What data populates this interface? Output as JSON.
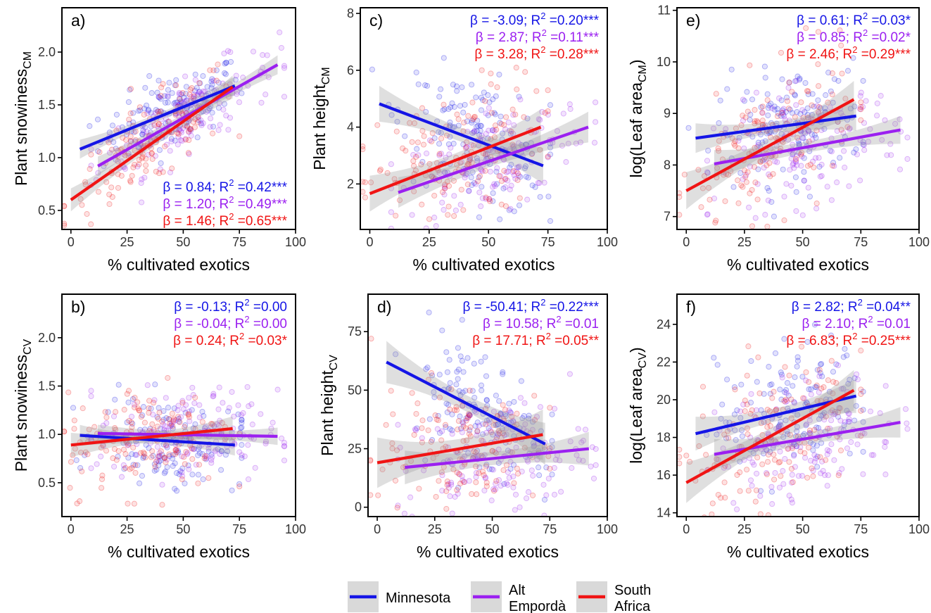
{
  "figure": {
    "legend": {
      "entries": [
        {
          "lines": [
            "Minnesota"
          ],
          "color": "#1515e6"
        },
        {
          "lines": [
            "Alt",
            "Empordà"
          ],
          "color": "#9b20f0"
        },
        {
          "lines": [
            "South",
            "Africa"
          ],
          "color": "#f01414"
        }
      ]
    }
  },
  "chart_data": [
    {
      "id": "a",
      "type": "scatter",
      "panel_label": "a)",
      "xlabel": "% cultivated exotics",
      "ylabel": {
        "main": "Plant snowiness",
        "sub": "CM"
      },
      "xlim": [
        -4,
        100
      ],
      "ylim": [
        0.32,
        2.42
      ],
      "xticks": [
        0,
        25,
        50,
        75,
        100
      ],
      "yticks": [
        0.5,
        1.0,
        1.5,
        2.0
      ],
      "ytick_labels": [
        "0.5",
        "1.0",
        "1.5",
        "2.0"
      ],
      "annot_pos": "bottom-right",
      "annotations": [
        {
          "beta": "0.84",
          "r2": "0.42",
          "sig": "***",
          "color": "#1515e6"
        },
        {
          "beta": "1.20",
          "r2": "0.49",
          "sig": "***",
          "color": "#9b20f0"
        },
        {
          "beta": "1.46",
          "r2": "0.65",
          "sig": "***",
          "color": "#f01414"
        }
      ],
      "series": [
        {
          "name": "Minnesota",
          "color": "#1515e6",
          "x0": 4,
          "x1": 73,
          "y0": 1.08,
          "y1": 1.68,
          "band": 0.05,
          "center": 45,
          "spread": 16,
          "noise": 0.17
        },
        {
          "name": "Alt Empordà",
          "color": "#9b20f0",
          "x0": 12,
          "x1": 92,
          "y0": 0.92,
          "y1": 1.88,
          "band": 0.05,
          "center": 52,
          "spread": 20,
          "noise": 0.17
        },
        {
          "name": "South Africa",
          "color": "#f01414",
          "x0": 0,
          "x1": 72,
          "y0": 0.6,
          "y1": 1.67,
          "band": 0.06,
          "center": 35,
          "spread": 19,
          "noise": 0.2
        }
      ]
    },
    {
      "id": "c",
      "type": "scatter",
      "panel_label": "c)",
      "xlabel": "% cultivated exotics",
      "ylabel": {
        "main": "Plant height",
        "sub": "CM"
      },
      "xlim": [
        -4,
        100
      ],
      "ylim": [
        0.4,
        8.2
      ],
      "xticks": [
        0,
        25,
        50,
        75,
        100
      ],
      "yticks": [
        2,
        4,
        6,
        8
      ],
      "ytick_labels": [
        "2",
        "4",
        "6",
        "8"
      ],
      "annot_pos": "top-right",
      "annotations": [
        {
          "beta": "-3.09",
          "r2": "0.20",
          "sig": "***",
          "color": "#1515e6"
        },
        {
          "beta": "2.87",
          "r2": "0.11",
          "sig": "***",
          "color": "#9b20f0"
        },
        {
          "beta": "3.28",
          "r2": "0.28",
          "sig": "***",
          "color": "#f01414"
        }
      ],
      "series": [
        {
          "name": "Minnesota",
          "color": "#1515e6",
          "x0": 4,
          "x1": 73,
          "y0": 4.82,
          "y1": 2.64,
          "band": 0.35,
          "center": 45,
          "spread": 16,
          "noise": 1.1
        },
        {
          "name": "Alt Empordà",
          "color": "#9b20f0",
          "x0": 12,
          "x1": 92,
          "y0": 1.7,
          "y1": 4.0,
          "band": 0.3,
          "center": 52,
          "spread": 20,
          "noise": 1.0
        },
        {
          "name": "South Africa",
          "color": "#f01414",
          "x0": 0,
          "x1": 72,
          "y0": 1.66,
          "y1": 4.0,
          "band": 0.35,
          "center": 35,
          "spread": 19,
          "noise": 1.2
        }
      ]
    },
    {
      "id": "e",
      "type": "scatter",
      "panel_label": "e)",
      "xlabel": "% cultivated exotics",
      "ylabel": {
        "main": "log(Leaf area",
        "sub": "CM",
        "suffix": ")"
      },
      "xlim": [
        -4,
        100
      ],
      "ylim": [
        6.75,
        11.05
      ],
      "xticks": [
        0,
        25,
        50,
        75,
        100
      ],
      "yticks": [
        7,
        8,
        9,
        10,
        11
      ],
      "ytick_labels": [
        "7",
        "8",
        "9",
        "10",
        "11"
      ],
      "annot_pos": "top-right",
      "annotations": [
        {
          "beta": "0.61",
          "r2": "0.03",
          "sig": "*",
          "color": "#1515e6"
        },
        {
          "beta": "0.85",
          "r2": "0.02",
          "sig": "*",
          "color": "#9b20f0"
        },
        {
          "beta": "2.46",
          "r2": "0.29",
          "sig": "***",
          "color": "#f01414"
        }
      ],
      "series": [
        {
          "name": "Minnesota",
          "color": "#1515e6",
          "x0": 4,
          "x1": 73,
          "y0": 8.52,
          "y1": 8.95,
          "band": 0.16,
          "center": 45,
          "spread": 16,
          "noise": 0.55
        },
        {
          "name": "Alt Empordà",
          "color": "#9b20f0",
          "x0": 12,
          "x1": 92,
          "y0": 8.02,
          "y1": 8.68,
          "band": 0.15,
          "center": 52,
          "spread": 20,
          "noise": 0.55
        },
        {
          "name": "South Africa",
          "color": "#f01414",
          "x0": 0,
          "x1": 72,
          "y0": 7.5,
          "y1": 9.27,
          "band": 0.2,
          "center": 35,
          "spread": 19,
          "noise": 0.65
        }
      ]
    },
    {
      "id": "b",
      "type": "scatter",
      "panel_label": "b)",
      "xlabel": "% cultivated exotics",
      "ylabel": {
        "main": "Plant snowiness",
        "sub": "CV"
      },
      "xlim": [
        -4,
        100
      ],
      "ylim": [
        0.15,
        2.45
      ],
      "xticks": [
        0,
        25,
        50,
        75,
        100
      ],
      "yticks": [
        0.5,
        1.0,
        1.5,
        2.0
      ],
      "ytick_labels": [
        "0.5",
        "1.0",
        "1.5",
        "2.0"
      ],
      "annot_pos": "top-right",
      "annotations": [
        {
          "beta": "-0.13",
          "r2": "0.00",
          "sig": "",
          "color": "#1515e6"
        },
        {
          "beta": "-0.04",
          "r2": "0.00",
          "sig": "",
          "color": "#9b20f0"
        },
        {
          "beta": "0.24",
          "r2": "0.03",
          "sig": "*",
          "color": "#f01414"
        }
      ],
      "series": [
        {
          "name": "Minnesota",
          "color": "#1515e6",
          "x0": 4,
          "x1": 73,
          "y0": 0.99,
          "y1": 0.89,
          "band": 0.06,
          "center": 45,
          "spread": 16,
          "noise": 0.22
        },
        {
          "name": "Alt Empordà",
          "color": "#9b20f0",
          "x0": 12,
          "x1": 92,
          "y0": 1.01,
          "y1": 0.98,
          "band": 0.05,
          "center": 52,
          "spread": 20,
          "noise": 0.24
        },
        {
          "name": "South Africa",
          "color": "#f01414",
          "x0": 0,
          "x1": 72,
          "y0": 0.89,
          "y1": 1.06,
          "band": 0.07,
          "center": 35,
          "spread": 19,
          "noise": 0.28
        }
      ]
    },
    {
      "id": "d",
      "type": "scatter",
      "panel_label": "d)",
      "xlabel": "% cultivated exotics",
      "ylabel": {
        "main": "Plant height",
        "sub": "CV"
      },
      "xlim": [
        -4,
        100
      ],
      "ylim": [
        -4,
        91
      ],
      "xticks": [
        0,
        25,
        50,
        75,
        100
      ],
      "yticks": [
        0,
        25,
        50,
        75
      ],
      "ytick_labels": [
        "0",
        "25",
        "50",
        "75"
      ],
      "annot_pos": "top-right",
      "annotations": [
        {
          "beta": "-50.41",
          "r2": "0.22",
          "sig": "***",
          "color": "#1515e6"
        },
        {
          "beta": "10.58",
          "r2": "0.01",
          "sig": "",
          "color": "#9b20f0"
        },
        {
          "beta": "17.71",
          "r2": "0.05",
          "sig": "**",
          "color": "#f01414"
        }
      ],
      "series": [
        {
          "name": "Minnesota",
          "color": "#1515e6",
          "x0": 4,
          "x1": 73,
          "y0": 62,
          "y1": 27,
          "band": 5,
          "center": 45,
          "spread": 16,
          "noise": 14
        },
        {
          "name": "Alt Empordà",
          "color": "#9b20f0",
          "x0": 12,
          "x1": 92,
          "y0": 17,
          "y1": 25,
          "band": 4,
          "center": 52,
          "spread": 20,
          "noise": 12
        },
        {
          "name": "South Africa",
          "color": "#f01414",
          "x0": 0,
          "x1": 72,
          "y0": 19,
          "y1": 31,
          "band": 6,
          "center": 35,
          "spread": 19,
          "noise": 15
        }
      ]
    },
    {
      "id": "f",
      "type": "scatter",
      "panel_label": "f)",
      "xlabel": "% cultivated exotics",
      "ylabel": {
        "main": "log(Leaf area",
        "sub": "CV",
        "suffix": ")"
      },
      "xlim": [
        -4,
        100
      ],
      "ylim": [
        13.8,
        25.6
      ],
      "xticks": [
        0,
        25,
        50,
        75,
        100
      ],
      "yticks": [
        14,
        16,
        18,
        20,
        22,
        24
      ],
      "ytick_labels": [
        "14",
        "16",
        "18",
        "20",
        "22",
        "24"
      ],
      "annot_pos": "top-right",
      "annotations": [
        {
          "beta": "2.82",
          "r2": "0.04",
          "sig": "**",
          "color": "#1515e6"
        },
        {
          "beta": "2.10",
          "r2": "0.01",
          "sig": "",
          "color": "#9b20f0"
        },
        {
          "beta": "6.83",
          "r2": "0.25",
          "sig": "***",
          "color": "#f01414"
        }
      ],
      "series": [
        {
          "name": "Minnesota",
          "color": "#1515e6",
          "x0": 4,
          "x1": 73,
          "y0": 18.2,
          "y1": 20.2,
          "band": 0.5,
          "center": 45,
          "spread": 16,
          "noise": 1.8
        },
        {
          "name": "Alt Empordà",
          "color": "#9b20f0",
          "x0": 12,
          "x1": 92,
          "y0": 17.1,
          "y1": 18.8,
          "band": 0.45,
          "center": 52,
          "spread": 20,
          "noise": 1.6
        },
        {
          "name": "South Africa",
          "color": "#f01414",
          "x0": 0,
          "x1": 72,
          "y0": 15.6,
          "y1": 20.5,
          "band": 0.6,
          "center": 35,
          "spread": 19,
          "noise": 2.2
        }
      ]
    }
  ]
}
